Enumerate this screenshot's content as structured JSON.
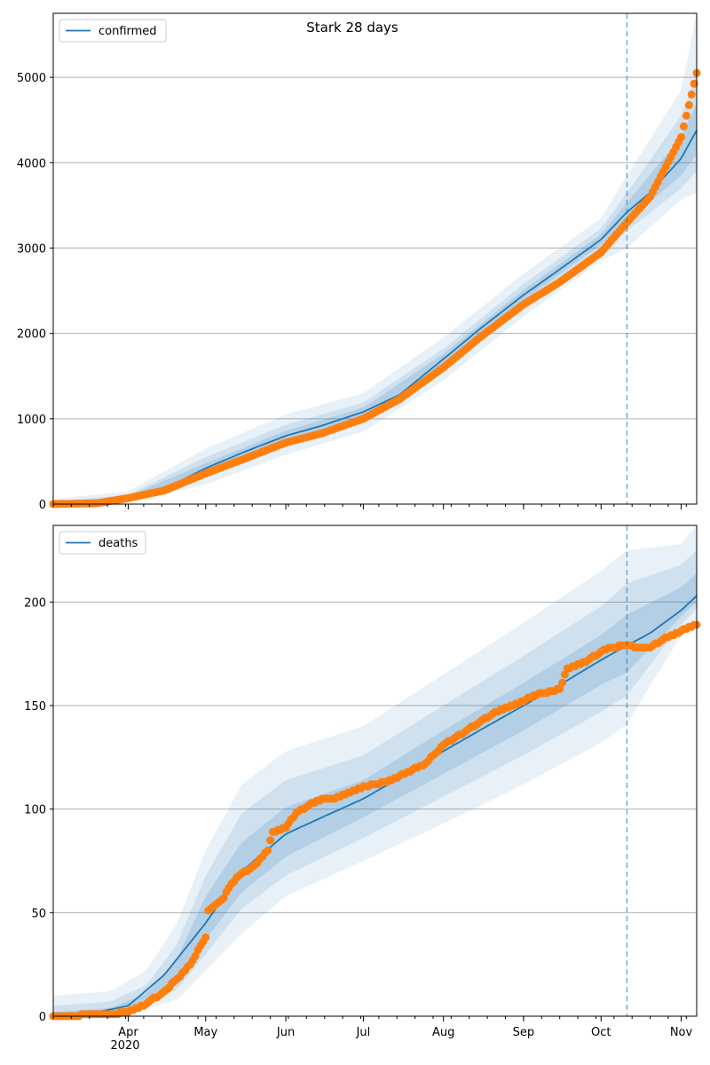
{
  "title": "Stark 28 days",
  "x_axis": {
    "year_label": "2020",
    "month_ticks": [
      "Apr",
      "May",
      "Jun",
      "Jul",
      "Aug",
      "Sep",
      "Oct",
      "Nov"
    ]
  },
  "colors": {
    "model": "#1f77b4",
    "observed": "#ff7f0e",
    "band": "#1f77b4",
    "grid": "#b0b0b0"
  },
  "forecast_start": "2020-10-11",
  "chart_data": [
    {
      "type": "line",
      "name": "confirmed",
      "legend_label": "confirmed",
      "legend_position": "upper-left",
      "xlim": [
        "2020-03-03",
        "2020-11-07"
      ],
      "ylim": [
        0,
        5750
      ],
      "yticks": [
        0,
        1000,
        2000,
        3000,
        4000,
        5000
      ],
      "grid": "horizontal",
      "model_line": [
        [
          "2020-03-03",
          0
        ],
        [
          "2020-03-20",
          10
        ],
        [
          "2020-04-01",
          80
        ],
        [
          "2020-04-15",
          180
        ],
        [
          "2020-05-01",
          420
        ],
        [
          "2020-05-15",
          600
        ],
        [
          "2020-06-01",
          800
        ],
        [
          "2020-06-15",
          920
        ],
        [
          "2020-07-01",
          1080
        ],
        [
          "2020-07-15",
          1280
        ],
        [
          "2020-08-01",
          1700
        ],
        [
          "2020-08-15",
          2050
        ],
        [
          "2020-09-01",
          2450
        ],
        [
          "2020-09-15",
          2750
        ],
        [
          "2020-10-01",
          3100
        ],
        [
          "2020-10-11",
          3420
        ],
        [
          "2020-10-20",
          3650
        ],
        [
          "2020-11-01",
          4050
        ],
        [
          "2020-11-07",
          4380
        ]
      ],
      "observed": [
        [
          "2020-03-03",
          0
        ],
        [
          "2020-03-20",
          10
        ],
        [
          "2020-04-01",
          70
        ],
        [
          "2020-04-15",
          160
        ],
        [
          "2020-05-01",
          360
        ],
        [
          "2020-05-15",
          520
        ],
        [
          "2020-06-01",
          720
        ],
        [
          "2020-06-15",
          830
        ],
        [
          "2020-07-01",
          1000
        ],
        [
          "2020-07-15",
          1230
        ],
        [
          "2020-08-01",
          1600
        ],
        [
          "2020-08-15",
          1950
        ],
        [
          "2020-09-01",
          2340
        ],
        [
          "2020-09-15",
          2600
        ],
        [
          "2020-10-01",
          2950
        ],
        [
          "2020-10-11",
          3300
        ],
        [
          "2020-10-20",
          3600
        ],
        [
          "2020-11-01",
          4300
        ],
        [
          "2020-11-07",
          5050
        ]
      ],
      "bands": [
        {
          "level": "outer",
          "upper": [
            [
              "2020-03-03",
              60
            ],
            [
              "2020-04-01",
              150
            ],
            [
              "2020-05-01",
              650
            ],
            [
              "2020-06-01",
              1050
            ],
            [
              "2020-07-01",
              1300
            ],
            [
              "2020-08-01",
              1950
            ],
            [
              "2020-09-01",
              2700
            ],
            [
              "2020-10-01",
              3350
            ],
            [
              "2020-10-11",
              3850
            ],
            [
              "2020-11-01",
              4850
            ],
            [
              "2020-11-07",
              5750
            ]
          ],
          "lower": [
            [
              "2020-03-03",
              0
            ],
            [
              "2020-04-01",
              20
            ],
            [
              "2020-05-01",
              230
            ],
            [
              "2020-06-01",
              580
            ],
            [
              "2020-07-01",
              850
            ],
            [
              "2020-08-01",
              1450
            ],
            [
              "2020-09-01",
              2200
            ],
            [
              "2020-10-01",
              2850
            ],
            [
              "2020-10-11",
              3000
            ],
            [
              "2020-11-01",
              3570
            ],
            [
              "2020-11-07",
              3650
            ]
          ]
        },
        {
          "level": "middle",
          "upper": [
            [
              "2020-03-03",
              30
            ],
            [
              "2020-04-01",
              110
            ],
            [
              "2020-05-01",
              550
            ],
            [
              "2020-06-01",
              930
            ],
            [
              "2020-07-01",
              1190
            ],
            [
              "2020-08-01",
              1820
            ],
            [
              "2020-09-01",
              2580
            ],
            [
              "2020-10-01",
              3230
            ],
            [
              "2020-10-11",
              3650
            ],
            [
              "2020-11-01",
              4550
            ],
            [
              "2020-11-07",
              5050
            ]
          ],
          "lower": [
            [
              "2020-03-03",
              0
            ],
            [
              "2020-04-01",
              40
            ],
            [
              "2020-05-01",
              310
            ],
            [
              "2020-06-01",
              680
            ],
            [
              "2020-07-01",
              960
            ],
            [
              "2020-08-01",
              1580
            ],
            [
              "2020-09-01",
              2320
            ],
            [
              "2020-10-01",
              2970
            ],
            [
              "2020-10-11",
              3200
            ],
            [
              "2020-11-01",
              3700
            ],
            [
              "2020-11-07",
              3900
            ]
          ]
        },
        {
          "level": "inner",
          "upper": [
            [
              "2020-03-03",
              10
            ],
            [
              "2020-04-01",
              95
            ],
            [
              "2020-05-01",
              480
            ],
            [
              "2020-06-01",
              860
            ],
            [
              "2020-07-01",
              1130
            ],
            [
              "2020-08-01",
              1760
            ],
            [
              "2020-09-01",
              2510
            ],
            [
              "2020-10-01",
              3160
            ],
            [
              "2020-10-11",
              3530
            ],
            [
              "2020-11-01",
              4300
            ],
            [
              "2020-11-07",
              4700
            ]
          ],
          "lower": [
            [
              "2020-03-03",
              0
            ],
            [
              "2020-04-01",
              60
            ],
            [
              "2020-05-01",
              370
            ],
            [
              "2020-06-01",
              740
            ],
            [
              "2020-07-01",
              1020
            ],
            [
              "2020-08-01",
              1640
            ],
            [
              "2020-09-01",
              2390
            ],
            [
              "2020-10-01",
              3040
            ],
            [
              "2020-10-11",
              3310
            ],
            [
              "2020-11-01",
              3850
            ],
            [
              "2020-11-07",
              4100
            ]
          ]
        }
      ]
    },
    {
      "type": "line",
      "name": "deaths",
      "legend_label": "deaths",
      "legend_position": "upper-left",
      "xlim": [
        "2020-03-03",
        "2020-11-07"
      ],
      "ylim": [
        0,
        237
      ],
      "yticks": [
        0,
        50,
        100,
        150,
        200
      ],
      "grid": "horizontal",
      "model_line": [
        [
          "2020-03-03",
          1
        ],
        [
          "2020-03-20",
          2
        ],
        [
          "2020-04-01",
          5
        ],
        [
          "2020-04-15",
          20
        ],
        [
          "2020-05-01",
          45
        ],
        [
          "2020-05-15",
          70
        ],
        [
          "2020-06-01",
          88
        ],
        [
          "2020-06-15",
          96
        ],
        [
          "2020-07-01",
          105
        ],
        [
          "2020-07-15",
          115
        ],
        [
          "2020-08-01",
          128
        ],
        [
          "2020-08-15",
          138
        ],
        [
          "2020-09-01",
          150
        ],
        [
          "2020-09-15",
          160
        ],
        [
          "2020-10-01",
          172
        ],
        [
          "2020-10-11",
          179
        ],
        [
          "2020-10-20",
          185
        ],
        [
          "2020-11-01",
          196
        ],
        [
          "2020-11-07",
          203
        ]
      ],
      "observed": [
        [
          "2020-03-03",
          0
        ],
        [
          "2020-03-25",
          1
        ],
        [
          "2020-04-01",
          2
        ],
        [
          "2020-04-08",
          6
        ],
        [
          "2020-04-15",
          12
        ],
        [
          "2020-04-20",
          18
        ],
        [
          "2020-04-25",
          25
        ],
        [
          "2020-05-01",
          38
        ],
        [
          "2020-05-01",
          50
        ],
        [
          "2020-05-08",
          57
        ],
        [
          "2020-05-10",
          62
        ],
        [
          "2020-05-13",
          67
        ],
        [
          "2020-05-20",
          73
        ],
        [
          "2020-05-25",
          80
        ],
        [
          "2020-05-27",
          89
        ],
        [
          "2020-06-01",
          91
        ],
        [
          "2020-06-05",
          98
        ],
        [
          "2020-06-10",
          102
        ],
        [
          "2020-06-15",
          105
        ],
        [
          "2020-06-20",
          105
        ],
        [
          "2020-07-01",
          111
        ],
        [
          "2020-07-10",
          113
        ],
        [
          "2020-07-15",
          116
        ],
        [
          "2020-07-25",
          122
        ],
        [
          "2020-08-01",
          131
        ],
        [
          "2020-08-05",
          134
        ],
        [
          "2020-08-10",
          138
        ],
        [
          "2020-08-15",
          142
        ],
        [
          "2020-08-20",
          146
        ],
        [
          "2020-08-25",
          149
        ],
        [
          "2020-09-01",
          152
        ],
        [
          "2020-09-05",
          155
        ],
        [
          "2020-09-12",
          157
        ],
        [
          "2020-09-15",
          158
        ],
        [
          "2020-09-18",
          168
        ],
        [
          "2020-09-25",
          171
        ],
        [
          "2020-10-01",
          176
        ],
        [
          "2020-10-05",
          178
        ],
        [
          "2020-10-11",
          179
        ],
        [
          "2020-10-15",
          178
        ],
        [
          "2020-10-20",
          178
        ],
        [
          "2020-10-25",
          182
        ],
        [
          "2020-11-01",
          186
        ],
        [
          "2020-11-05",
          188
        ],
        [
          "2020-11-07",
          189
        ]
      ],
      "bands": [
        {
          "level": "outer",
          "upper": [
            [
              "2020-03-03",
              10
            ],
            [
              "2020-03-25",
              12
            ],
            [
              "2020-04-08",
              22
            ],
            [
              "2020-04-20",
              45
            ],
            [
              "2020-05-01",
              80
            ],
            [
              "2020-05-15",
              112
            ],
            [
              "2020-06-01",
              128
            ],
            [
              "2020-07-01",
              140
            ],
            [
              "2020-08-01",
              165
            ],
            [
              "2020-09-01",
              190
            ],
            [
              "2020-10-01",
              215
            ],
            [
              "2020-10-11",
              225
            ],
            [
              "2020-11-01",
              228
            ],
            [
              "2020-11-07",
              237
            ]
          ],
          "lower": [
            [
              "2020-03-03",
              0
            ],
            [
              "2020-04-01",
              1
            ],
            [
              "2020-04-20",
              8
            ],
            [
              "2020-05-01",
              22
            ],
            [
              "2020-05-15",
              40
            ],
            [
              "2020-06-01",
              58
            ],
            [
              "2020-07-01",
              75
            ],
            [
              "2020-08-01",
              93
            ],
            [
              "2020-09-01",
              112
            ],
            [
              "2020-10-01",
              132
            ],
            [
              "2020-10-11",
              141
            ],
            [
              "2020-11-01",
              184
            ],
            [
              "2020-11-07",
              192
            ]
          ]
        },
        {
          "level": "middle",
          "upper": [
            [
              "2020-03-03",
              5
            ],
            [
              "2020-03-25",
              7
            ],
            [
              "2020-04-08",
              15
            ],
            [
              "2020-04-20",
              35
            ],
            [
              "2020-05-01",
              68
            ],
            [
              "2020-05-15",
              98
            ],
            [
              "2020-06-01",
              114
            ],
            [
              "2020-07-01",
              126
            ],
            [
              "2020-08-01",
              150
            ],
            [
              "2020-09-01",
              174
            ],
            [
              "2020-10-01",
              198
            ],
            [
              "2020-10-11",
              209
            ],
            [
              "2020-11-01",
              218
            ],
            [
              "2020-11-07",
              225
            ]
          ],
          "lower": [
            [
              "2020-03-03",
              0
            ],
            [
              "2020-04-01",
              2
            ],
            [
              "2020-04-20",
              13
            ],
            [
              "2020-05-01",
              30
            ],
            [
              "2020-05-15",
              52
            ],
            [
              "2020-06-01",
              68
            ],
            [
              "2020-07-01",
              86
            ],
            [
              "2020-08-01",
              106
            ],
            [
              "2020-09-01",
              126
            ],
            [
              "2020-10-01",
              147
            ],
            [
              "2020-10-11",
              155
            ],
            [
              "2020-11-01",
              189
            ],
            [
              "2020-11-07",
              197
            ]
          ]
        },
        {
          "level": "inner",
          "upper": [
            [
              "2020-03-03",
              2
            ],
            [
              "2020-03-25",
              4
            ],
            [
              "2020-04-08",
              11
            ],
            [
              "2020-04-20",
              28
            ],
            [
              "2020-05-01",
              58
            ],
            [
              "2020-05-15",
              84
            ],
            [
              "2020-06-01",
              101
            ],
            [
              "2020-07-01",
              114
            ],
            [
              "2020-08-01",
              138
            ],
            [
              "2020-09-01",
              161
            ],
            [
              "2020-10-01",
              184
            ],
            [
              "2020-10-11",
              194
            ],
            [
              "2020-11-01",
              207
            ],
            [
              "2020-11-07",
              214
            ]
          ],
          "lower": [
            [
              "2020-03-03",
              0
            ],
            [
              "2020-04-01",
              3
            ],
            [
              "2020-04-20",
              18
            ],
            [
              "2020-05-01",
              37
            ],
            [
              "2020-05-15",
              60
            ],
            [
              "2020-06-01",
              77
            ],
            [
              "2020-07-01",
              96
            ],
            [
              "2020-08-01",
              117
            ],
            [
              "2020-09-01",
              138
            ],
            [
              "2020-10-01",
              160
            ],
            [
              "2020-10-11",
              166
            ],
            [
              "2020-11-01",
              193
            ],
            [
              "2020-11-07",
              200
            ]
          ]
        }
      ]
    }
  ]
}
